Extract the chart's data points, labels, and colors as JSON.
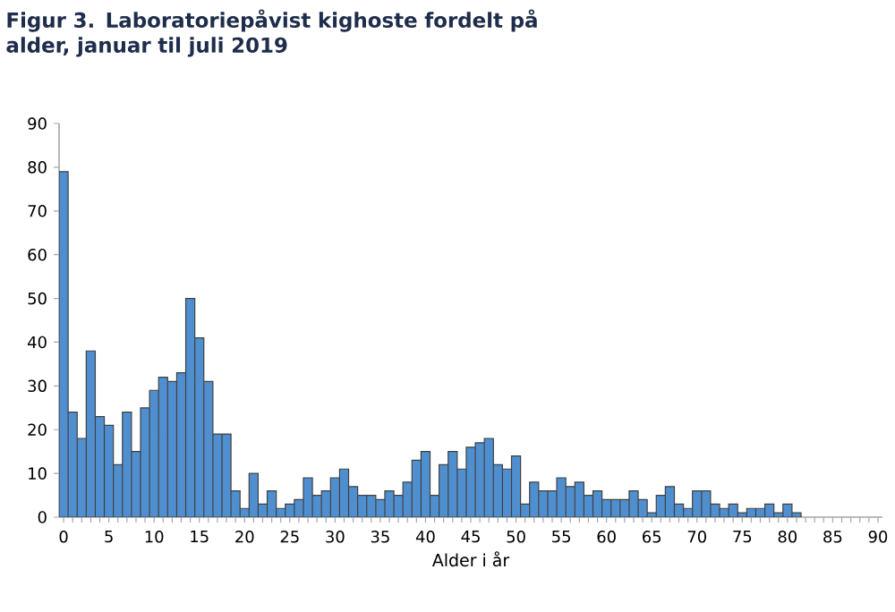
{
  "chart_data": {
    "type": "bar",
    "title": "Figur 3. Laboratoriepåvist kighoste fordelt på alder, januar til juli 2019",
    "xlabel": "Alder i år",
    "categories": [
      "0",
      null,
      null,
      null,
      null,
      "5",
      null,
      null,
      null,
      null,
      "10",
      null,
      null,
      null,
      null,
      "15",
      null,
      null,
      null,
      null,
      "20",
      null,
      null,
      null,
      null,
      "25",
      null,
      null,
      null,
      null,
      "30",
      null,
      null,
      null,
      null,
      "35",
      null,
      null,
      null,
      null,
      "40",
      null,
      null,
      null,
      null,
      "45",
      null,
      null,
      null,
      null,
      "50",
      null,
      null,
      null,
      null,
      "55",
      null,
      null,
      null,
      null,
      "60",
      null,
      null,
      null,
      null,
      "65",
      null,
      null,
      null,
      null,
      "70",
      null,
      null,
      null,
      null,
      "75",
      null,
      null,
      null,
      null,
      "80",
      null,
      null,
      null,
      null,
      "85",
      null,
      null,
      null,
      null,
      "90"
    ],
    "values": [
      79,
      24,
      18,
      38,
      23,
      21,
      12,
      24,
      15,
      25,
      29,
      32,
      31,
      33,
      50,
      41,
      31,
      19,
      19,
      6,
      2,
      10,
      3,
      6,
      2,
      3,
      4,
      9,
      5,
      6,
      9,
      11,
      7,
      5,
      5,
      4,
      6,
      5,
      8,
      13,
      15,
      5,
      12,
      15,
      11,
      16,
      17,
      18,
      12,
      11,
      14,
      3,
      8,
      6,
      6,
      9,
      7,
      8,
      5,
      6,
      4,
      4,
      4,
      6,
      4,
      1,
      5,
      7,
      3,
      2,
      6,
      6,
      3,
      2,
      3,
      1,
      2,
      2,
      3,
      1,
      3,
      1,
      null,
      null,
      null,
      null,
      null,
      null,
      null,
      null,
      null
    ],
    "color": "#4f8fd0",
    "ylim": [
      0,
      90
    ],
    "yticks": [
      0,
      10,
      20,
      30,
      40,
      50,
      60,
      70,
      80,
      90
    ],
    "grid": false
  }
}
